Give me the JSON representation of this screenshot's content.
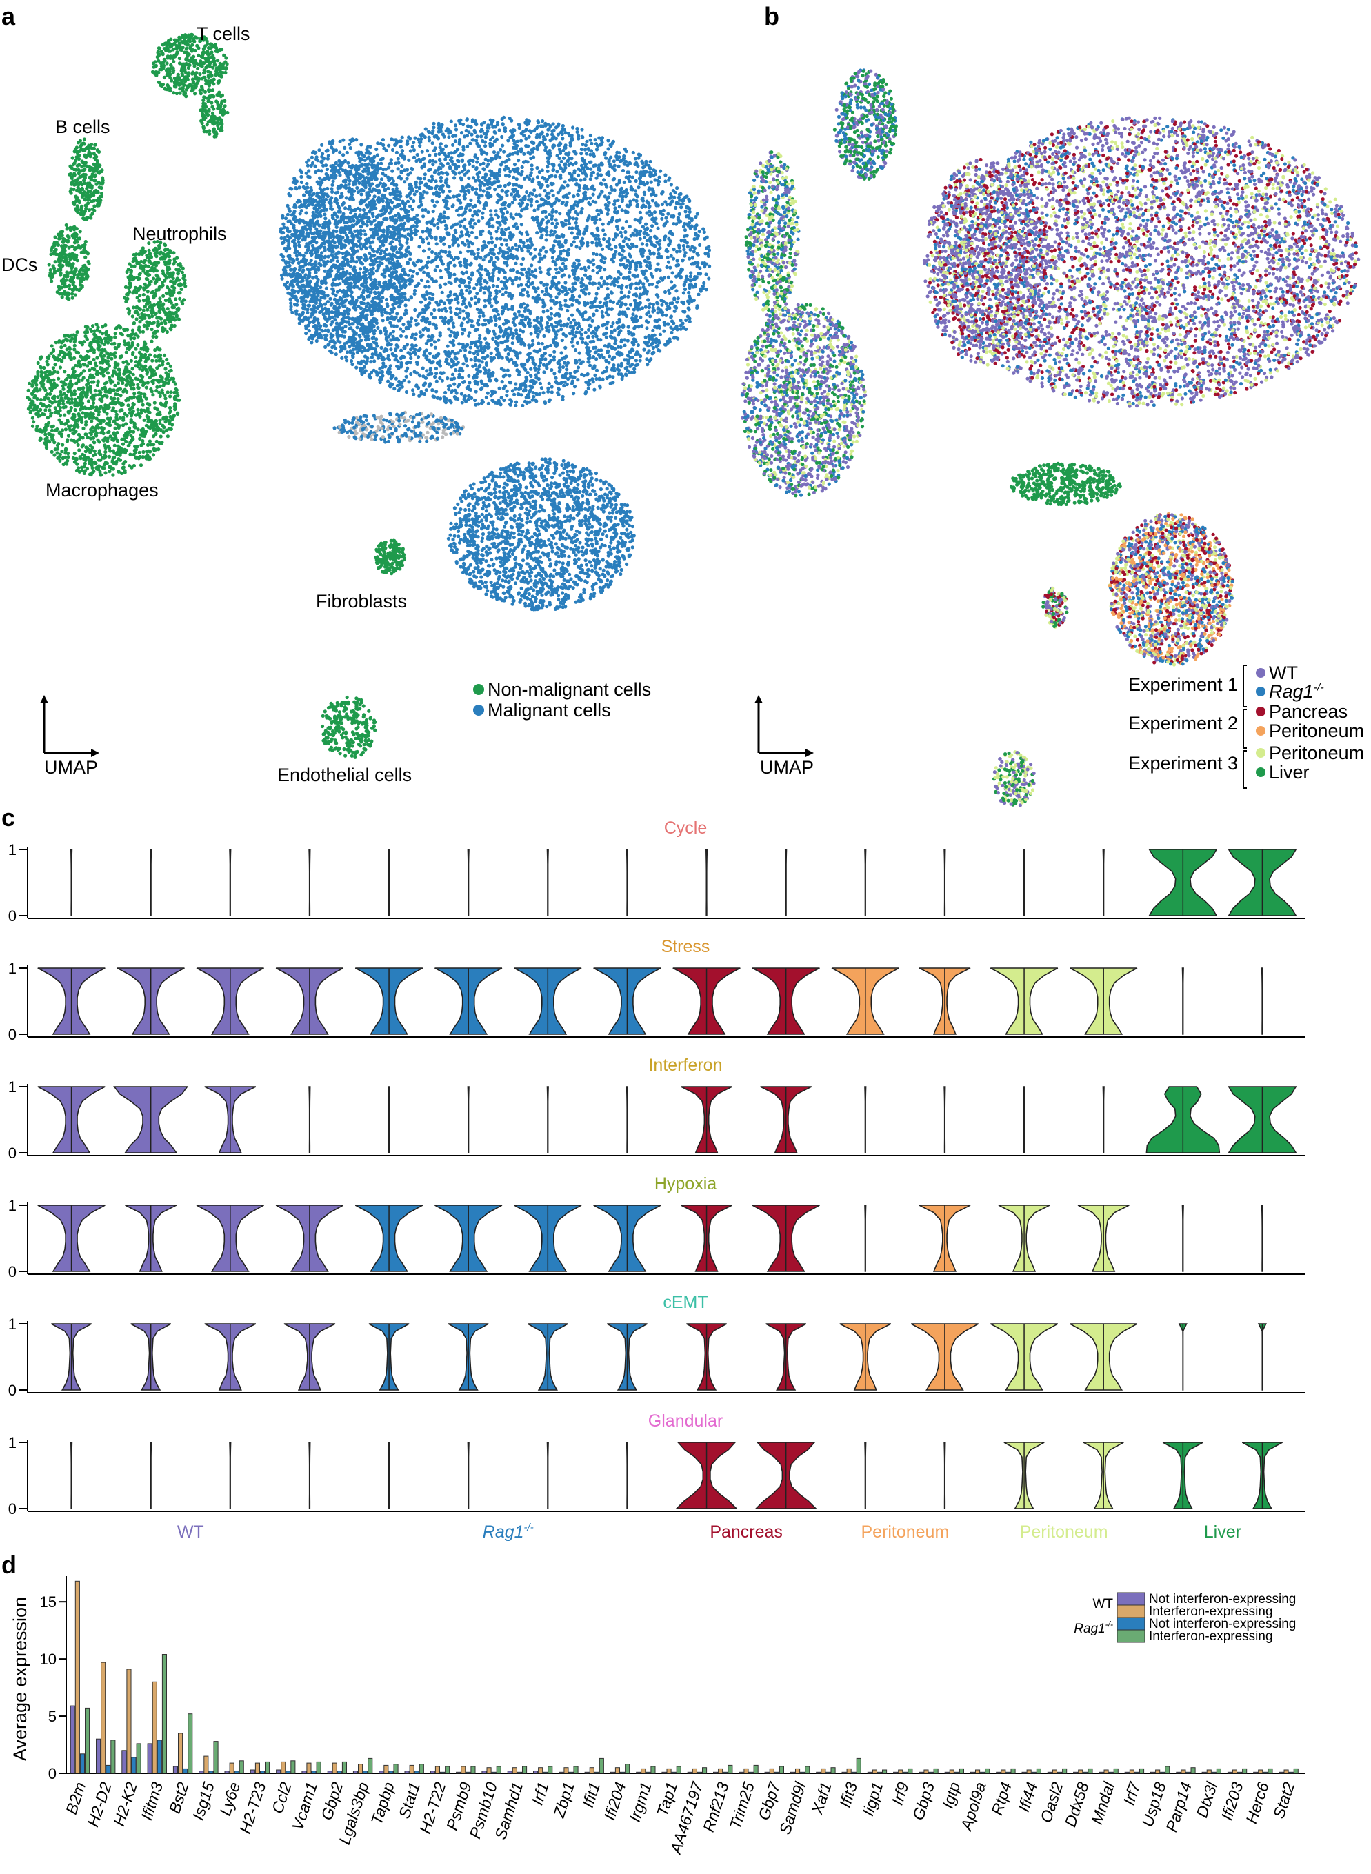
{
  "colors": {
    "green": "#1f9a4c",
    "blue": "#2a7ebd",
    "gray": "#b9b9b9",
    "purple": "#7b6fbc",
    "dark_red": "#a3102d",
    "orange": "#f4a35c",
    "light_green": "#d4ec8e",
    "cycle": "#e57373",
    "stress": "#d9962f",
    "interferon": "#c9a227",
    "hypoxia": "#8ea52a",
    "cemt": "#3bbfa6",
    "glandular": "#e36bd0"
  },
  "panel_a": {
    "label": "a",
    "cell_types": [
      "T cells",
      "B cells",
      "Neutrophils",
      "DCs",
      "Macrophages",
      "Fibroblasts",
      "Endothelial cells"
    ],
    "legend": [
      "Non-malignant cells",
      "Malignant cells"
    ],
    "axis_label": "UMAP"
  },
  "panel_b": {
    "label": "b",
    "axis_label": "UMAP",
    "experiments": [
      "Experiment 1",
      "Experiment 2",
      "Experiment 3"
    ],
    "legend": [
      {
        "label": "WT",
        "color": "#7b6fbc"
      },
      {
        "label": "Rag1",
        "sup": "-/-",
        "color": "#2a7ebd"
      },
      {
        "label": "Pancreas",
        "color": "#a3102d"
      },
      {
        "label": "Peritoneum",
        "color": "#f4a35c"
      },
      {
        "label": "Peritoneum",
        "color": "#d4ec8e"
      },
      {
        "label": "Liver",
        "color": "#1f9a4c"
      }
    ]
  },
  "panel_c": {
    "label": "c",
    "y_ticks": [
      "0",
      "1"
    ],
    "groups": [
      {
        "label": "WT",
        "color": "#7b6fbc",
        "n": 4
      },
      {
        "label": "Rag1",
        "sup": "-/-",
        "color": "#2a7ebd",
        "n": 4
      },
      {
        "label": "Pancreas",
        "color": "#a3102d",
        "n": 2
      },
      {
        "label": "Peritoneum",
        "color": "#f4a35c",
        "n": 2
      },
      {
        "label": "Peritoneum",
        "color": "#d4ec8e",
        "n": 2
      },
      {
        "label": "Liver",
        "color": "#1f9a4c",
        "n": 2
      }
    ],
    "programs": [
      {
        "name": "Cycle",
        "color": "#e57373",
        "shapes": [
          "n",
          "n",
          "n",
          "n",
          "n",
          "n",
          "n",
          "n",
          "n",
          "n",
          "n",
          "n",
          "n",
          "n",
          "hg",
          "hg"
        ]
      },
      {
        "name": "Stress",
        "color": "#d9962f",
        "shapes": [
          "h",
          "h",
          "h",
          "h",
          "h",
          "h",
          "h",
          "h",
          "h",
          "h",
          "h",
          "m",
          "h",
          "h",
          "n",
          "n"
        ]
      },
      {
        "name": "Interferon",
        "color": "#c9a227",
        "shapes": [
          "h",
          "H",
          "m",
          "n",
          "n",
          "n",
          "n",
          "n",
          "m",
          "m",
          "n",
          "n",
          "n",
          "n",
          "hi",
          "hg"
        ]
      },
      {
        "name": "Hypoxia",
        "color": "#8ea52a",
        "shapes": [
          "h",
          "m",
          "h",
          "h",
          "h",
          "h",
          "h",
          "h",
          "m",
          "h",
          "n",
          "m",
          "m",
          "m",
          "n",
          "n"
        ]
      },
      {
        "name": "cEMT",
        "color": "#3bbfa6",
        "shapes": [
          "s",
          "s",
          "m",
          "m",
          "s",
          "s",
          "s",
          "s",
          "s",
          "s",
          "m",
          "h",
          "h",
          "h",
          "z",
          "z"
        ]
      },
      {
        "name": "Glandular",
        "color": "#e36bd0",
        "shapes": [
          "n",
          "n",
          "n",
          "n",
          "n",
          "n",
          "n",
          "n",
          "b",
          "b",
          "n",
          "n",
          "s",
          "s",
          "s",
          "s"
        ]
      }
    ]
  },
  "chart_data": {
    "type": "bar",
    "ylabel": "Average expression",
    "ylim": [
      0,
      17
    ],
    "y_ticks": [
      0,
      5,
      10,
      15
    ],
    "legend_groups": [
      {
        "label": "WT",
        "entries": [
          "Not interferon-expressing",
          "Interferon-expressing"
        ]
      },
      {
        "label": "Rag1",
        "sup": "-/-",
        "entries": [
          "Not interferon-expressing",
          "Interferon-expressing"
        ]
      }
    ],
    "categories": [
      "B2m",
      "H2-D2",
      "H2-K2",
      "Ifitm3",
      "Bst2",
      "Isg15",
      "Ly6e",
      "H2-T23",
      "Ccl2",
      "Vcam1",
      "Gbp2",
      "Lgals3bp",
      "Tapbp",
      "Stat1",
      "H2-T22",
      "Psmb9",
      "Psmb10",
      "Samhd1",
      "Irf1",
      "Zbp1",
      "Ifit1",
      "Ifi204",
      "Irgm1",
      "Tap1",
      "AA467197",
      "Rnf213",
      "Trim25",
      "Gbp7",
      "Samd9l",
      "Xaf1",
      "Ifit3",
      "Iigp1",
      "Irf9",
      "Gbp3",
      "Igtp",
      "Apol9a",
      "Rtp4",
      "Ifi44",
      "Oasl2",
      "Ddx58",
      "Mndal",
      "Irf7",
      "Usp18",
      "Parp14",
      "Dtx3l",
      "Ifi203",
      "Herc6",
      "Stat2"
    ],
    "series": [
      {
        "name": "WT Not interferon-expressing",
        "color": "#7b6fbc",
        "values": [
          5.9,
          3.0,
          2.0,
          2.6,
          0.6,
          0.2,
          0.2,
          0.3,
          0.3,
          0.2,
          0.2,
          0.2,
          0.2,
          0.2,
          0.2,
          0.1,
          0.2,
          0.2,
          0.2,
          0.1,
          0.1,
          0.1,
          0.1,
          0.1,
          0.1,
          0.1,
          0.1,
          0.1,
          0.1,
          0.1,
          0.1,
          0.1,
          0.1,
          0.1,
          0.1,
          0.1,
          0.1,
          0.1,
          0.1,
          0.1,
          0.1,
          0.1,
          0.1,
          0.1,
          0.1,
          0.1,
          0.1,
          0.1
        ]
      },
      {
        "name": "WT Interferon-expressing",
        "color": "#d9a86a",
        "values": [
          16.8,
          9.7,
          9.1,
          8.0,
          3.5,
          1.5,
          0.9,
          0.9,
          1.0,
          0.9,
          0.9,
          0.8,
          0.7,
          0.7,
          0.6,
          0.6,
          0.5,
          0.5,
          0.5,
          0.5,
          0.5,
          0.5,
          0.4,
          0.4,
          0.4,
          0.4,
          0.4,
          0.4,
          0.4,
          0.4,
          0.4,
          0.3,
          0.3,
          0.3,
          0.3,
          0.3,
          0.3,
          0.3,
          0.3,
          0.3,
          0.3,
          0.3,
          0.3,
          0.3,
          0.3,
          0.3,
          0.3,
          0.3
        ]
      },
      {
        "name": "Rag1-/- Not interferon-expressing",
        "color": "#2a7ebd",
        "values": [
          1.7,
          0.7,
          1.4,
          2.9,
          0.4,
          0.2,
          0.2,
          0.2,
          0.2,
          0.2,
          0.2,
          0.2,
          0.2,
          0.2,
          0.1,
          0.1,
          0.1,
          0.1,
          0.1,
          0.1,
          0.1,
          0.1,
          0.1,
          0.1,
          0.1,
          0.1,
          0.1,
          0.1,
          0.1,
          0.1,
          0.1,
          0.1,
          0.1,
          0.1,
          0.1,
          0.1,
          0.1,
          0.1,
          0.1,
          0.1,
          0.1,
          0.1,
          0.1,
          0.1,
          0.1,
          0.1,
          0.1,
          0.1
        ]
      },
      {
        "name": "Rag1-/- Interferon-expressing",
        "color": "#6aab73",
        "values": [
          5.7,
          2.9,
          2.6,
          10.4,
          5.2,
          2.8,
          1.1,
          1.0,
          1.1,
          1.0,
          1.0,
          1.3,
          0.8,
          0.8,
          0.6,
          0.6,
          0.6,
          0.6,
          0.6,
          0.6,
          1.3,
          0.8,
          0.6,
          0.6,
          0.5,
          0.7,
          0.7,
          0.6,
          0.6,
          0.5,
          1.3,
          0.3,
          0.4,
          0.4,
          0.4,
          0.4,
          0.4,
          0.4,
          0.4,
          0.4,
          0.4,
          0.4,
          0.6,
          0.5,
          0.4,
          0.4,
          0.4,
          0.4
        ]
      }
    ]
  }
}
